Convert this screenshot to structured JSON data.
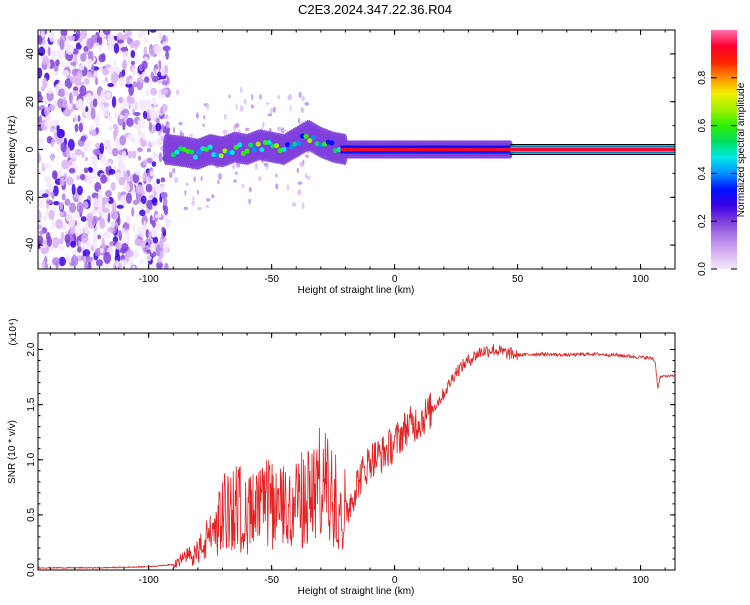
{
  "title": "C2E3.2024.347.22.36.R04",
  "chart_data": [
    {
      "type": "heatmap",
      "xlabel": "Height of straight line (km)",
      "ylabel": "Frequency (Hz)",
      "xlim": [
        -145,
        114
      ],
      "ylim": [
        -50,
        50
      ],
      "xticks": [
        -100,
        -50,
        0,
        50,
        100
      ],
      "xtick_labels": [
        "-100",
        "-50",
        "0",
        "50",
        "100"
      ],
      "yticks": [
        -40,
        -20,
        0,
        20,
        40
      ],
      "ytick_labels": [
        "-40",
        "-20",
        "0",
        "20",
        "40"
      ],
      "colorbar": {
        "label": "Normalized spectral amplitude",
        "range": [
          0,
          1
        ],
        "ticks": [
          0.0,
          0.2,
          0.4,
          0.6,
          0.8
        ],
        "tick_labels": [
          "0.0",
          "0.2",
          "0.4",
          "0.6",
          "0.8"
        ],
        "colors": [
          "#f4e8fb",
          "#d9b3f3",
          "#b07ee8",
          "#7f3fdc",
          "#3a00e6",
          "#0010ff",
          "#0090ff",
          "#00e8e8",
          "#00e060",
          "#2cf000",
          "#a0f000",
          "#f0f000",
          "#ff9000",
          "#ff2000",
          "#ff0030",
          "#ff70b0"
        ]
      },
      "features": {
        "noise_region_x": [
          -145,
          -92
        ],
        "signal_track": [
          [
            -92,
            0
          ],
          [
            -85,
            -1
          ],
          [
            -80,
            -2
          ],
          [
            -75,
            0
          ],
          [
            -70,
            -1
          ],
          [
            -65,
            1
          ],
          [
            -60,
            0
          ],
          [
            -55,
            2
          ],
          [
            -50,
            1
          ],
          [
            -45,
            0
          ],
          [
            -40,
            3
          ],
          [
            -35,
            6
          ],
          [
            -30,
            3
          ],
          [
            -25,
            1
          ],
          [
            -20,
            0
          ],
          [
            -10,
            0
          ],
          [
            0,
            0
          ],
          [
            10,
            0
          ],
          [
            20,
            0
          ],
          [
            30,
            0
          ],
          [
            40,
            0
          ],
          [
            47,
            0
          ],
          [
            114,
            0
          ]
        ]
      },
      "grid": false
    },
    {
      "type": "line",
      "xlabel": "Height of straight line (km)",
      "ylabel": "SNR (10 * v/v)",
      "yscale_label": "(x10⁴)",
      "xlim": [
        -145,
        114
      ],
      "ylim": [
        0,
        2.15
      ],
      "xticks": [
        -100,
        -50,
        0,
        50,
        100
      ],
      "xtick_labels": [
        "-100",
        "-50",
        "0",
        "50",
        "100"
      ],
      "yticks": [
        0.0,
        0.5,
        1.0,
        1.5,
        2.0
      ],
      "ytick_labels": [
        "0.0",
        "0.5",
        "1.0",
        "1.5",
        "2.0"
      ],
      "color": "#e32222",
      "grid": false,
      "series": [
        {
          "x": [
            -145,
            -120,
            -100,
            -90,
            -85,
            -80,
            -75,
            -70,
            -65,
            -60,
            -55,
            -50,
            -45,
            -40,
            -35,
            -30,
            -25,
            -20,
            -15,
            -10,
            -5,
            0,
            5,
            10,
            15,
            20,
            25,
            30,
            35,
            40,
            45,
            50,
            60,
            70,
            80,
            90,
            100,
            105,
            106,
            107,
            108,
            110,
            114
          ],
          "y": [
            0.02,
            0.02,
            0.03,
            0.05,
            0.1,
            0.15,
            0.28,
            0.45,
            0.55,
            0.45,
            0.5,
            0.55,
            0.5,
            0.55,
            0.6,
            0.7,
            0.6,
            0.5,
            0.8,
            1.0,
            1.05,
            1.15,
            1.3,
            1.35,
            1.45,
            1.6,
            1.8,
            1.9,
            1.98,
            2.0,
            1.97,
            1.95,
            1.96,
            1.95,
            1.96,
            1.95,
            1.93,
            1.92,
            1.88,
            1.65,
            1.75,
            1.76,
            1.76
          ]
        }
      ]
    }
  ]
}
